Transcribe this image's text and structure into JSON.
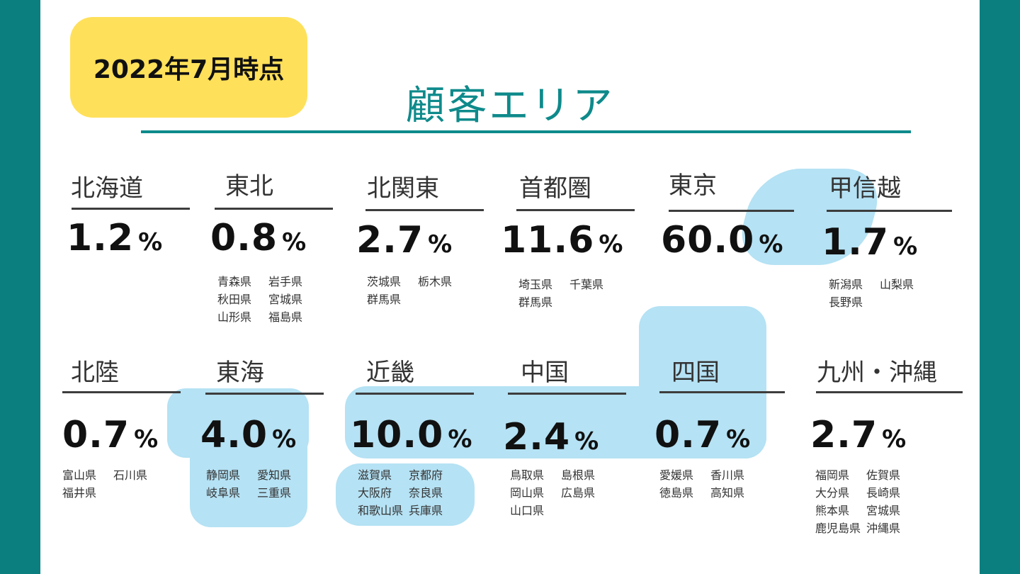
{
  "badge": "2022年7月時点",
  "title": "顧客エリア",
  "percent_unit": "%",
  "regions": [
    {
      "name": "北海道",
      "value": "1.2",
      "prefectures": []
    },
    {
      "name": "東北",
      "value": "0.8",
      "prefectures": [
        "青森県",
        "岩手県",
        "秋田県",
        "宮城県",
        "山形県",
        "福島県"
      ]
    },
    {
      "name": "北関東",
      "value": "2.7",
      "prefectures": [
        "茨城県",
        "栃木県",
        "群馬県"
      ]
    },
    {
      "name": "首都圏",
      "value": "11.6",
      "prefectures": [
        "埼玉県",
        "千葉県",
        "群馬県"
      ]
    },
    {
      "name": "東京",
      "value": "60.0",
      "prefectures": []
    },
    {
      "name": "甲信越",
      "value": "1.7",
      "prefectures": [
        "新潟県",
        "山梨県",
        "長野県"
      ]
    },
    {
      "name": "北陸",
      "value": "0.7",
      "prefectures": [
        "富山県",
        "石川県",
        "福井県"
      ]
    },
    {
      "name": "東海",
      "value": "4.0",
      "prefectures": [
        "静岡県",
        "愛知県",
        "岐阜県",
        "三重県"
      ]
    },
    {
      "name": "近畿",
      "value": "10.0",
      "prefectures": [
        "滋賀県",
        "京都府",
        "大阪府",
        "奈良県",
        "和歌山県",
        "兵庫県"
      ]
    },
    {
      "name": "中国",
      "value": "2.4",
      "prefectures": [
        "鳥取県",
        "島根県",
        "岡山県",
        "広島県",
        "山口県"
      ]
    },
    {
      "name": "四国",
      "value": "0.7",
      "prefectures": [
        "愛媛県",
        "香川県",
        "徳島県",
        "高知県"
      ]
    },
    {
      "name": "九州・沖縄",
      "value": "2.7",
      "prefectures": [
        "福岡県",
        "佐賀県",
        "大分県",
        "長崎県",
        "熊本県",
        "宮城県",
        "鹿児島県",
        "沖縄県"
      ]
    }
  ],
  "colors": {
    "teal": "#0b7f80",
    "badge": "#ffe05a",
    "highlight": "#b5e2f4"
  }
}
